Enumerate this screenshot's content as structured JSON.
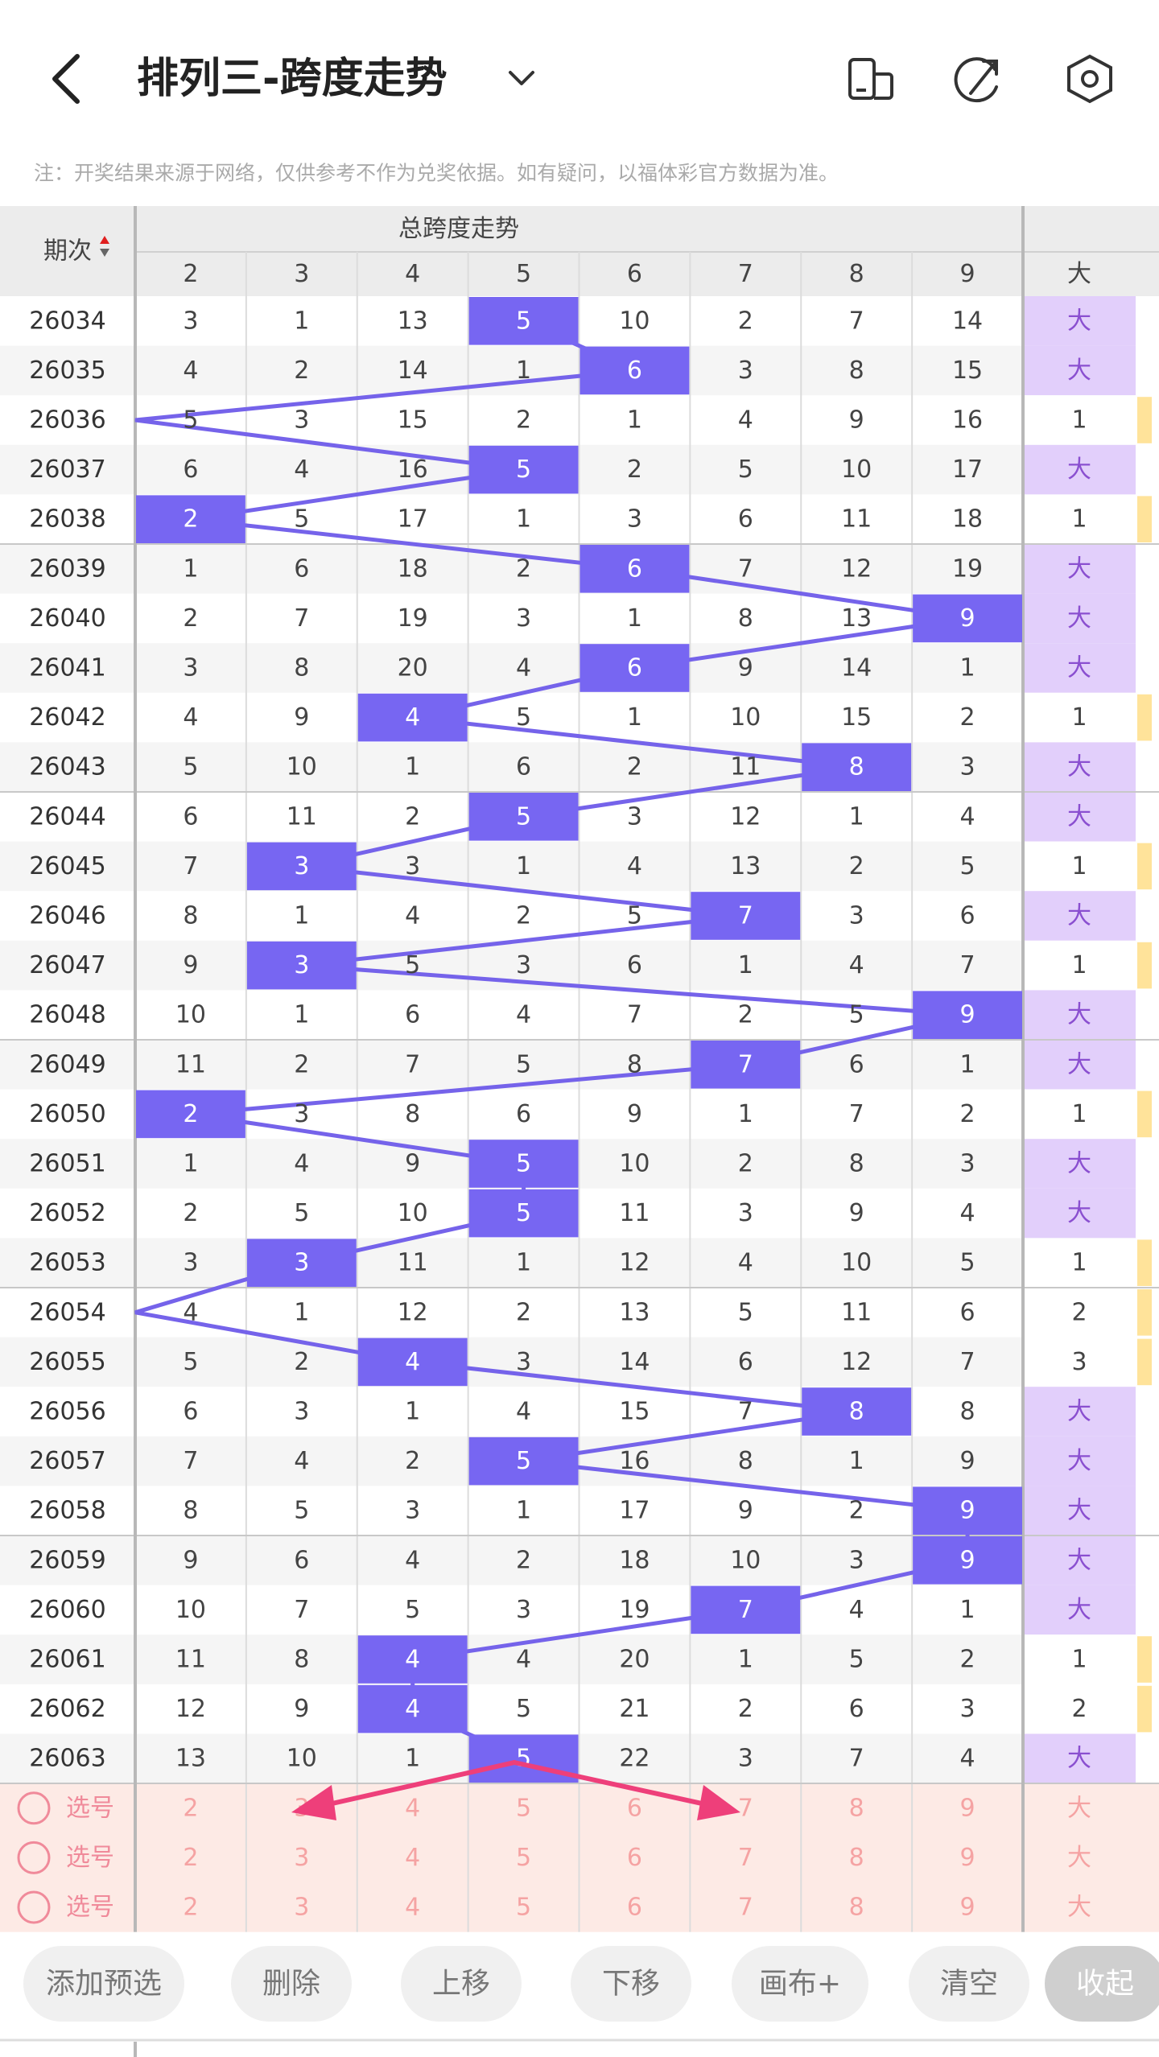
{
  "header": {
    "title": "排列三-跨度走势"
  },
  "note": "注：开奖结果来源于网络，仅供参考不作为兑奖依据。如有疑问，以福体彩官方数据为准。",
  "table": {
    "period_label": "期次",
    "group_label": "总跨度走势",
    "columns": [
      2,
      3,
      4,
      5,
      6,
      7,
      8,
      9
    ],
    "extra_column": "大",
    "rows": [
      {
        "period": "26034",
        "values": [
          3,
          1,
          13,
          5,
          10,
          2,
          7,
          14
        ],
        "hit": 3,
        "extra": "大"
      },
      {
        "period": "26035",
        "values": [
          4,
          2,
          14,
          1,
          6,
          3,
          8,
          15
        ],
        "hit": 4,
        "extra": "大"
      },
      {
        "period": "26036",
        "values": [
          5,
          3,
          15,
          2,
          1,
          4,
          9,
          16
        ],
        "hit": null,
        "extra": 1
      },
      {
        "period": "26037",
        "values": [
          6,
          4,
          16,
          5,
          2,
          5,
          10,
          17
        ],
        "hit": 3,
        "extra": "大"
      },
      {
        "period": "26038",
        "values": [
          2,
          5,
          17,
          1,
          3,
          6,
          11,
          18
        ],
        "hit": 0,
        "extra": 1
      },
      {
        "period": "26039",
        "values": [
          1,
          6,
          18,
          2,
          6,
          7,
          12,
          19
        ],
        "hit": 4,
        "extra": "大"
      },
      {
        "period": "26040",
        "values": [
          2,
          7,
          19,
          3,
          1,
          8,
          13,
          9
        ],
        "hit": 7,
        "extra": "大"
      },
      {
        "period": "26041",
        "values": [
          3,
          8,
          20,
          4,
          6,
          9,
          14,
          1
        ],
        "hit": 4,
        "extra": "大"
      },
      {
        "period": "26042",
        "values": [
          4,
          9,
          4,
          5,
          1,
          10,
          15,
          2
        ],
        "hit": 2,
        "extra": 1
      },
      {
        "period": "26043",
        "values": [
          5,
          10,
          1,
          6,
          2,
          11,
          8,
          3
        ],
        "hit": 6,
        "extra": "大"
      },
      {
        "period": "26044",
        "values": [
          6,
          11,
          2,
          5,
          3,
          12,
          1,
          4
        ],
        "hit": 3,
        "extra": "大"
      },
      {
        "period": "26045",
        "values": [
          7,
          3,
          3,
          1,
          4,
          13,
          2,
          5
        ],
        "hit": 1,
        "extra": 1
      },
      {
        "period": "26046",
        "values": [
          8,
          1,
          4,
          2,
          5,
          7,
          3,
          6
        ],
        "hit": 5,
        "extra": "大"
      },
      {
        "period": "26047",
        "values": [
          9,
          3,
          5,
          3,
          6,
          1,
          4,
          7
        ],
        "hit": 1,
        "extra": 1
      },
      {
        "period": "26048",
        "values": [
          10,
          1,
          6,
          4,
          7,
          2,
          5,
          9
        ],
        "hit": 7,
        "extra": "大"
      },
      {
        "period": "26049",
        "values": [
          11,
          2,
          7,
          5,
          8,
          7,
          6,
          1
        ],
        "hit": 5,
        "extra": "大"
      },
      {
        "period": "26050",
        "values": [
          2,
          3,
          8,
          6,
          9,
          1,
          7,
          2
        ],
        "hit": 0,
        "extra": 1
      },
      {
        "period": "26051",
        "values": [
          1,
          4,
          9,
          5,
          10,
          2,
          8,
          3
        ],
        "hit": 3,
        "extra": "大"
      },
      {
        "period": "26052",
        "values": [
          2,
          5,
          10,
          5,
          11,
          3,
          9,
          4
        ],
        "hit": 3,
        "extra": "大"
      },
      {
        "period": "26053",
        "values": [
          3,
          3,
          11,
          1,
          12,
          4,
          10,
          5
        ],
        "hit": 1,
        "extra": 1
      },
      {
        "period": "26054",
        "values": [
          4,
          1,
          12,
          2,
          13,
          5,
          11,
          6
        ],
        "hit": null,
        "extra": 2
      },
      {
        "period": "26055",
        "values": [
          5,
          2,
          4,
          3,
          14,
          6,
          12,
          7
        ],
        "hit": 2,
        "extra": 3
      },
      {
        "period": "26056",
        "values": [
          6,
          3,
          1,
          4,
          15,
          7,
          8,
          8
        ],
        "hit": 6,
        "extra": "大"
      },
      {
        "period": "26057",
        "values": [
          7,
          4,
          2,
          5,
          16,
          8,
          1,
          9
        ],
        "hit": 3,
        "extra": "大"
      },
      {
        "period": "26058",
        "values": [
          8,
          5,
          3,
          1,
          17,
          9,
          2,
          9
        ],
        "hit": 7,
        "extra": "大"
      },
      {
        "period": "26059",
        "values": [
          9,
          6,
          4,
          2,
          18,
          10,
          3,
          9
        ],
        "hit": 7,
        "extra": "大"
      },
      {
        "period": "26060",
        "values": [
          10,
          7,
          5,
          3,
          19,
          7,
          4,
          1
        ],
        "hit": 5,
        "extra": "大"
      },
      {
        "period": "26061",
        "values": [
          11,
          8,
          4,
          4,
          20,
          1,
          5,
          2
        ],
        "hit": 2,
        "extra": 1
      },
      {
        "period": "26062",
        "values": [
          12,
          9,
          4,
          5,
          21,
          2,
          6,
          3
        ],
        "hit": 2,
        "extra": 2
      },
      {
        "period": "26063",
        "values": [
          13,
          10,
          1,
          5,
          22,
          3,
          7,
          4
        ],
        "hit": 3,
        "extra": "大"
      }
    ],
    "select_rows": [
      {
        "label": "选号",
        "values": [
          2,
          3,
          4,
          5,
          6,
          7,
          8,
          9
        ],
        "extra": "大"
      },
      {
        "label": "选号",
        "values": [
          2,
          3,
          4,
          5,
          6,
          7,
          8,
          9
        ],
        "extra": "大"
      },
      {
        "label": "选号",
        "values": [
          2,
          3,
          4,
          5,
          6,
          7,
          8,
          9
        ],
        "extra": "大"
      }
    ]
  },
  "buttons": [
    "添加预选",
    "删除",
    "上移",
    "下移",
    "画布+",
    "清空",
    "收起"
  ]
}
